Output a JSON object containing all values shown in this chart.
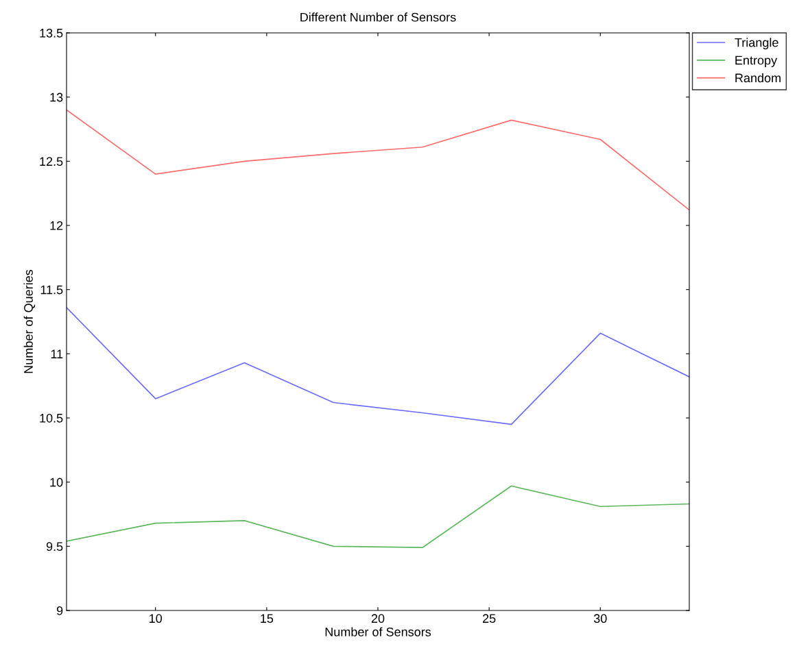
{
  "chart_data": {
    "type": "line",
    "title": "Different Number of Sensors",
    "xlabel": "Number of Sensors",
    "ylabel": "Number of Queries",
    "x": [
      6,
      10,
      14,
      18,
      22,
      26,
      30,
      34
    ],
    "series": [
      {
        "name": "Triangle",
        "color": "#6b6bff",
        "values": [
          11.36,
          10.65,
          10.93,
          10.62,
          10.54,
          10.45,
          11.16,
          10.82
        ]
      },
      {
        "name": "Entropy",
        "color": "#5cb85c",
        "values": [
          9.54,
          9.68,
          9.7,
          9.5,
          9.49,
          9.97,
          9.81,
          9.83
        ]
      },
      {
        "name": "Random",
        "color": "#ff6b6b",
        "values": [
          12.9,
          12.4,
          12.5,
          12.56,
          12.61,
          12.82,
          12.67,
          12.12
        ]
      }
    ],
    "xlim": [
      6,
      34
    ],
    "xticks": [
      10,
      15,
      20,
      25,
      30
    ],
    "ylim": [
      9,
      13.5
    ],
    "yticks": [
      9,
      9.5,
      10,
      10.5,
      11,
      11.5,
      12,
      12.5,
      13,
      13.5
    ],
    "grid": false,
    "legend": "top right",
    "marker": "none",
    "line_style": "solid"
  }
}
